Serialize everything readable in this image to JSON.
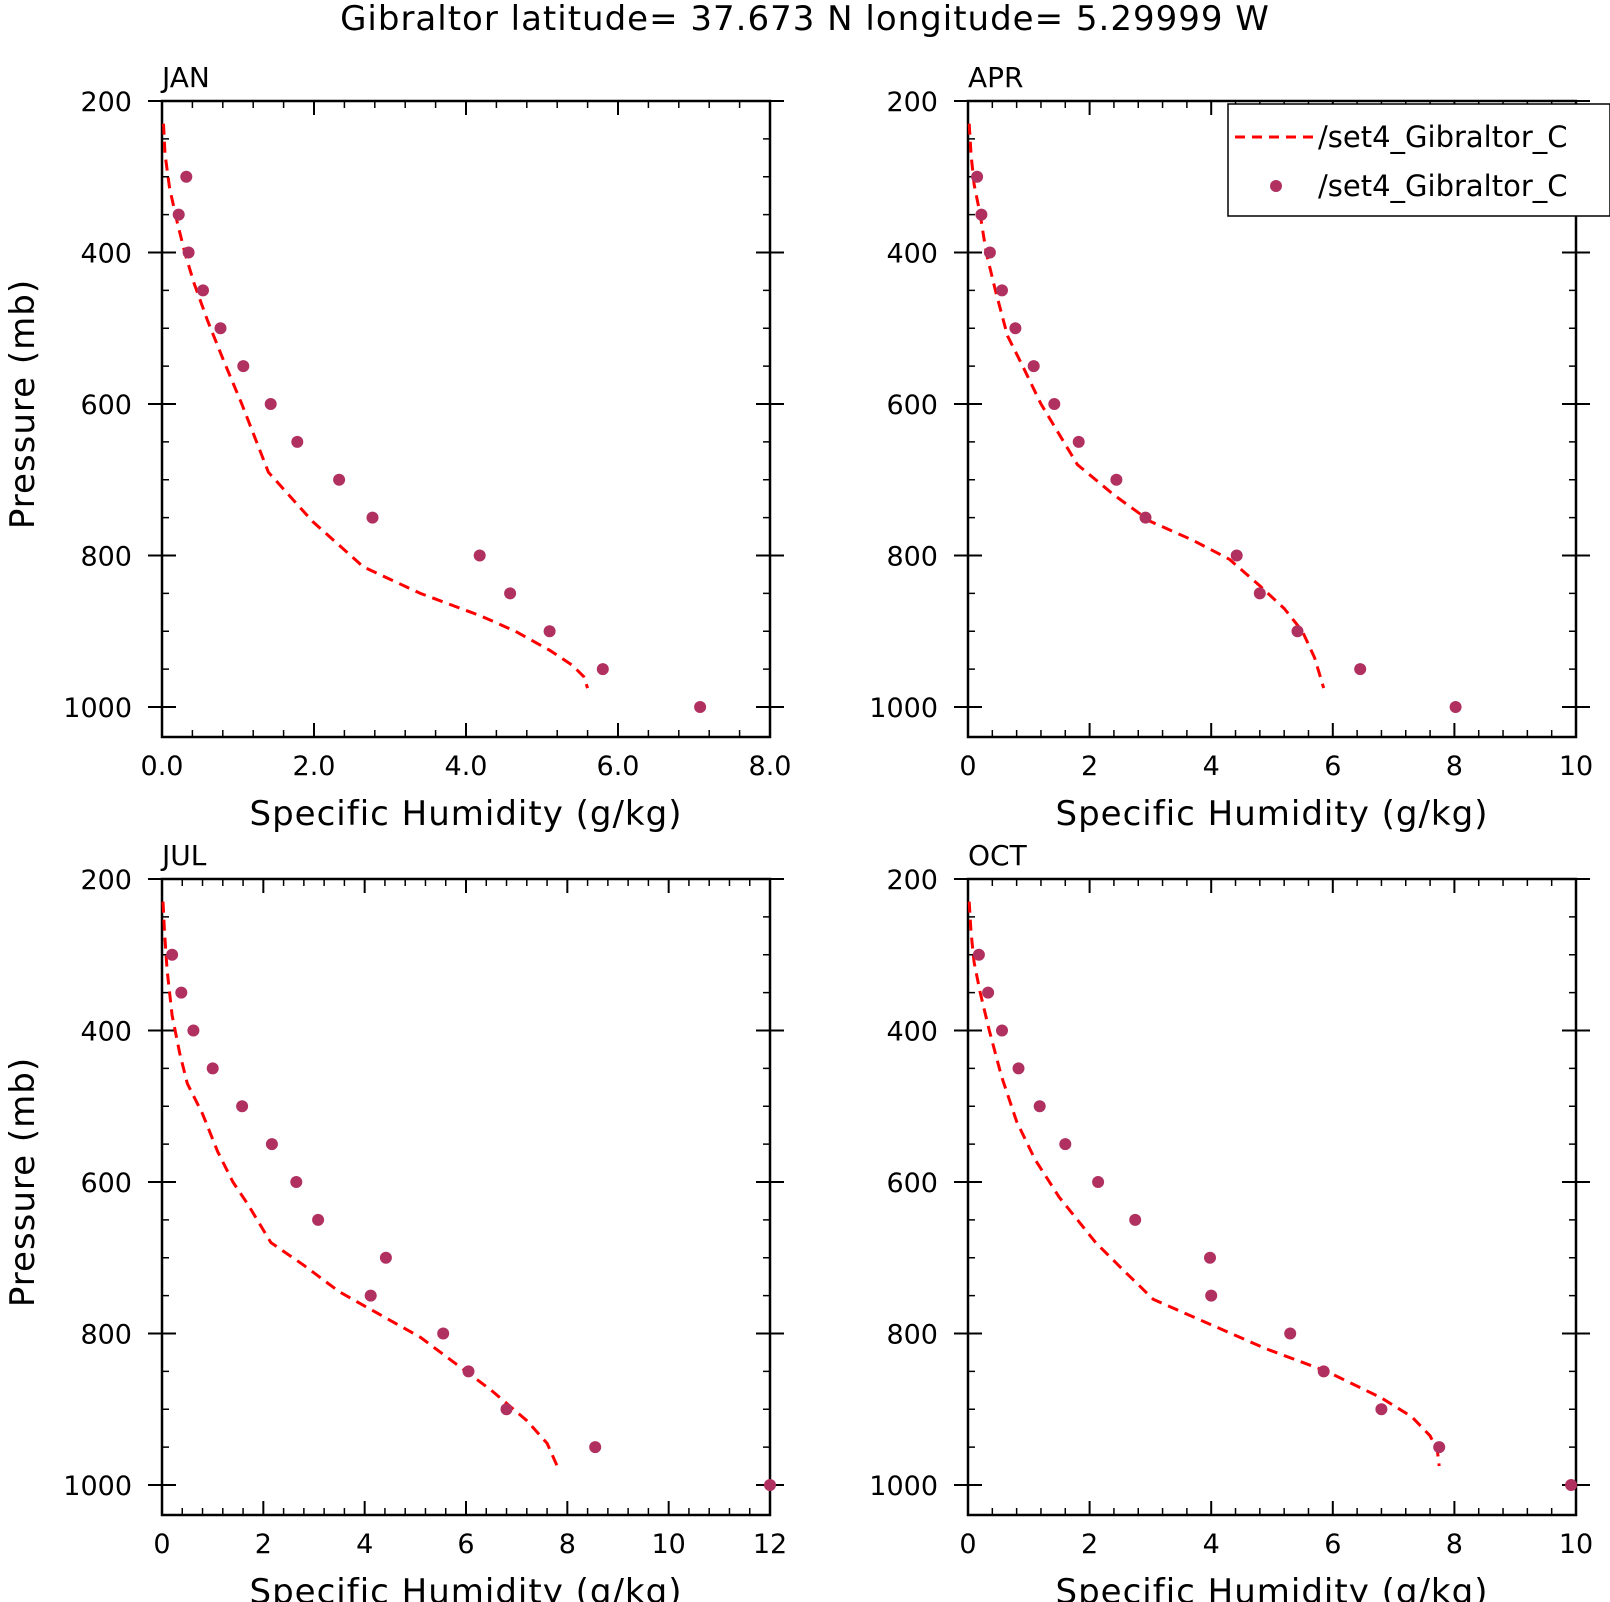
{
  "title": "Gibraltor  latitude= 37.673 N longitude= 5.29999 W",
  "legend": {
    "entries": [
      {
        "label": "/set4_Gibraltor_C",
        "style": "dashed-line",
        "color": "#ff0000"
      },
      {
        "label": "/set4_Gibraltor_C",
        "style": "marker",
        "color": "#b03060"
      }
    ],
    "placement": "top-right (clipped at figure edge, inside APR panel)"
  },
  "colors": {
    "line": "#ff0000",
    "marker": "#b03060",
    "axes": "#000000"
  },
  "chart_data": [
    {
      "type": "line",
      "panel_label": "JAN",
      "xlabel": "Specific Humidity (g/kg)",
      "ylabel": "Pressure (mb)",
      "xlim": [
        0,
        8
      ],
      "ylim": [
        200,
        1000
      ],
      "y_inverted": true,
      "x_ticks": [
        "0.0",
        "2.0",
        "4.0",
        "6.0",
        "8.0"
      ],
      "x_tick_values": [
        0,
        2,
        4,
        6,
        8
      ],
      "y_ticks": [
        "200",
        "400",
        "600",
        "800",
        "1000"
      ],
      "y_tick_values": [
        200,
        400,
        600,
        800,
        1000
      ],
      "series": [
        {
          "style": "dashed-line",
          "x": [
            0.02,
            0.04,
            0.1,
            0.2,
            0.3,
            0.42,
            0.6,
            0.8,
            1.05,
            1.4,
            1.98,
            2.65,
            3.4,
            4.2,
            4.65,
            5.1,
            5.4,
            5.55,
            5.6
          ],
          "y": [
            230,
            270,
            315,
            360,
            400,
            440,
            490,
            540,
            600,
            690,
            755,
            815,
            850,
            880,
            900,
            925,
            945,
            960,
            975
          ]
        },
        {
          "style": "marker",
          "x": [
            0.32,
            0.22,
            0.35,
            0.54,
            0.77,
            1.07,
            1.43,
            1.78,
            2.33,
            2.77,
            4.18,
            4.58,
            5.1,
            5.8,
            7.08
          ],
          "y": [
            300,
            350,
            400,
            450,
            500,
            550,
            600,
            650,
            700,
            750,
            800,
            850,
            900,
            950,
            1000
          ]
        }
      ]
    },
    {
      "type": "line",
      "panel_label": "APR",
      "xlabel": "Specific Humidity (g/kg)",
      "ylabel": "",
      "xlim": [
        0,
        10
      ],
      "ylim": [
        200,
        1000
      ],
      "y_inverted": true,
      "x_ticks": [
        "0",
        "2",
        "4",
        "6",
        "8",
        "10"
      ],
      "x_tick_values": [
        0,
        2,
        4,
        6,
        8,
        10
      ],
      "y_ticks": [
        "200",
        "400",
        "600",
        "800",
        "1000"
      ],
      "y_tick_values": [
        200,
        400,
        600,
        800,
        1000
      ],
      "series": [
        {
          "style": "dashed-line",
          "x": [
            0.02,
            0.05,
            0.1,
            0.2,
            0.3,
            0.45,
            0.65,
            0.9,
            1.2,
            1.8,
            2.4,
            3.0,
            3.7,
            4.3,
            4.8,
            5.2,
            5.5,
            5.7,
            5.85
          ],
          "y": [
            230,
            270,
            310,
            350,
            400,
            450,
            510,
            550,
            600,
            680,
            720,
            755,
            780,
            805,
            840,
            870,
            900,
            935,
            975
          ]
        },
        {
          "style": "marker",
          "x": [
            0.15,
            0.22,
            0.36,
            0.56,
            0.78,
            1.08,
            1.42,
            1.82,
            2.44,
            2.92,
            4.42,
            4.8,
            5.42,
            6.45,
            8.02
          ],
          "y": [
            300,
            350,
            400,
            450,
            500,
            550,
            600,
            650,
            700,
            750,
            800,
            850,
            900,
            950,
            1000
          ]
        }
      ]
    },
    {
      "type": "line",
      "panel_label": "JUL",
      "xlabel": "Specific Humidity (g/kg)",
      "ylabel": "Pressure (mb)",
      "xlim": [
        0,
        12
      ],
      "ylim": [
        200,
        1000
      ],
      "y_inverted": true,
      "x_ticks": [
        "0",
        "2",
        "4",
        "6",
        "8",
        "10",
        "12"
      ],
      "x_tick_values": [
        0,
        2,
        4,
        6,
        8,
        10,
        12
      ],
      "y_ticks": [
        "200",
        "400",
        "600",
        "800",
        "1000"
      ],
      "y_tick_values": [
        200,
        400,
        600,
        800,
        1000
      ],
      "series": [
        {
          "style": "dashed-line",
          "x": [
            0.02,
            0.05,
            0.1,
            0.2,
            0.35,
            0.5,
            0.8,
            1.1,
            1.4,
            1.7,
            2.15,
            2.8,
            3.5,
            4.3,
            5.1,
            5.8,
            6.5,
            7.2,
            7.6,
            7.8
          ],
          "y": [
            230,
            270,
            320,
            380,
            430,
            470,
            510,
            560,
            600,
            630,
            680,
            710,
            745,
            775,
            805,
            840,
            875,
            915,
            945,
            975
          ]
        },
        {
          "style": "marker",
          "x": [
            0.2,
            0.38,
            0.62,
            1.0,
            1.58,
            2.17,
            2.65,
            3.08,
            4.42,
            4.12,
            5.55,
            6.05,
            6.8,
            8.55,
            12.0
          ],
          "y": [
            300,
            350,
            400,
            450,
            500,
            550,
            600,
            650,
            700,
            750,
            800,
            850,
            900,
            950,
            1000
          ]
        }
      ]
    },
    {
      "type": "line",
      "panel_label": "OCT",
      "xlabel": "Specific Humidity (g/kg)",
      "ylabel": "",
      "xlim": [
        0,
        10
      ],
      "ylim": [
        200,
        1000
      ],
      "y_inverted": true,
      "x_ticks": [
        "0",
        "2",
        "4",
        "6",
        "8",
        "10"
      ],
      "x_tick_values": [
        0,
        2,
        4,
        6,
        8,
        10
      ],
      "y_ticks": [
        "200",
        "400",
        "600",
        "800",
        "1000"
      ],
      "y_tick_values": [
        200,
        400,
        600,
        800,
        1000
      ],
      "series": [
        {
          "style": "dashed-line",
          "x": [
            0.02,
            0.05,
            0.1,
            0.2,
            0.35,
            0.55,
            0.8,
            1.1,
            1.5,
            2.1,
            2.6,
            3.05,
            3.9,
            4.9,
            5.9,
            6.8,
            7.3,
            7.6,
            7.72,
            7.75
          ],
          "y": [
            230,
            270,
            310,
            350,
            400,
            460,
            520,
            570,
            620,
            680,
            720,
            755,
            785,
            820,
            850,
            885,
            910,
            935,
            955,
            975
          ]
        },
        {
          "style": "marker",
          "x": [
            0.18,
            0.33,
            0.56,
            0.83,
            1.18,
            1.6,
            2.14,
            2.75,
            3.98,
            4.0,
            5.3,
            5.85,
            6.8,
            7.75,
            9.92
          ],
          "y": [
            300,
            350,
            400,
            450,
            500,
            550,
            600,
            650,
            700,
            750,
            800,
            850,
            900,
            950,
            1000
          ]
        }
      ]
    }
  ]
}
